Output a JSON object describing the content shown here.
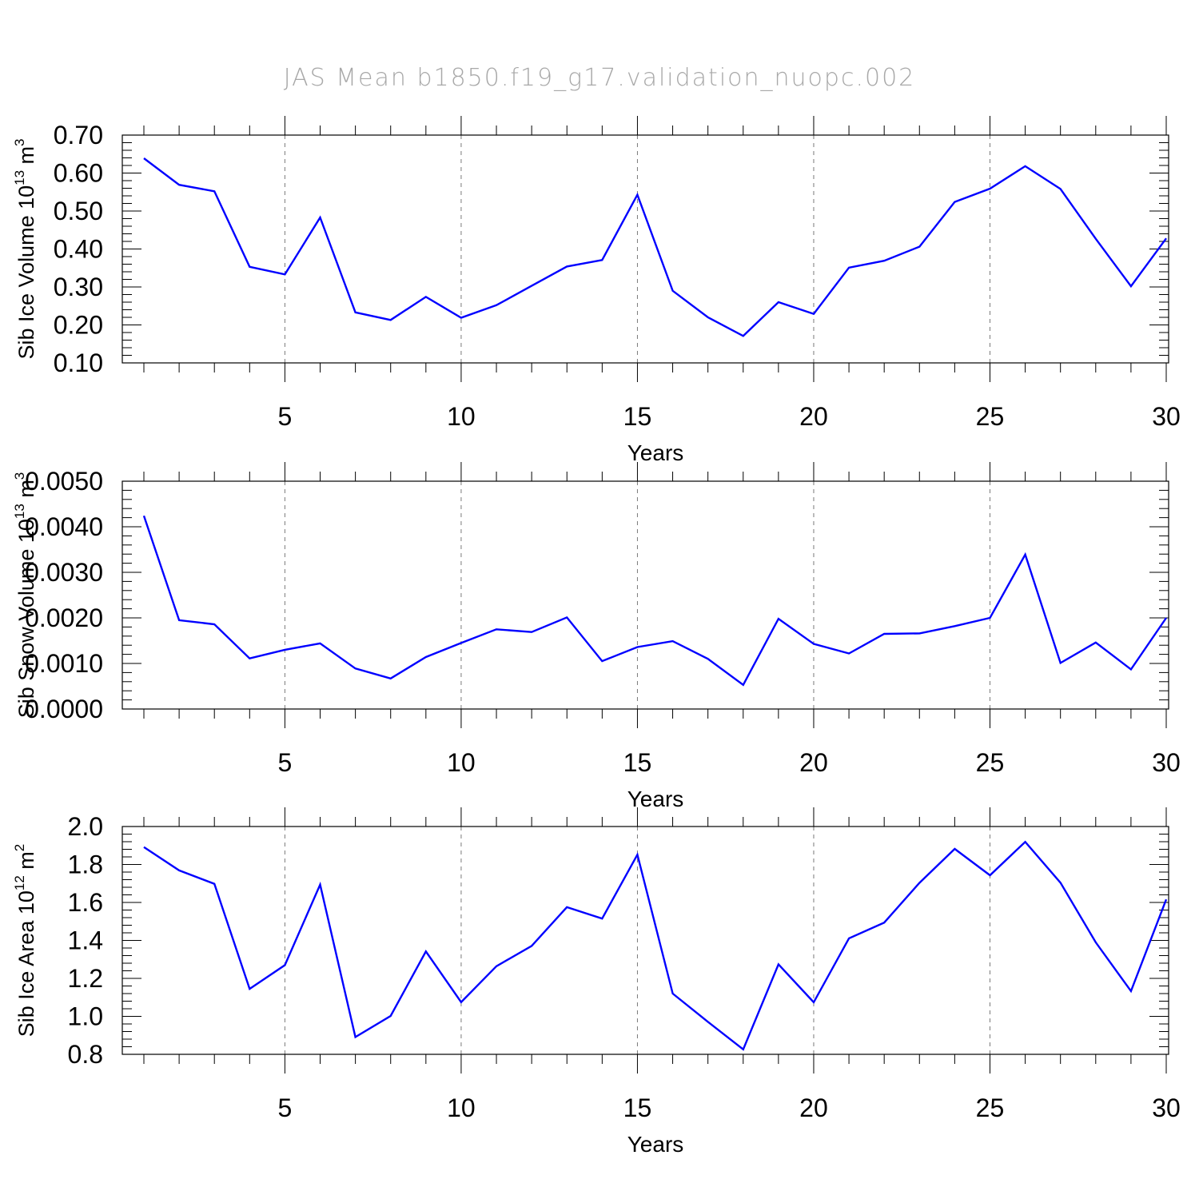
{
  "figure": {
    "title": "JAS Mean b1850.f19_g17.validation_nuopc.002",
    "line_color": "#0000ff"
  },
  "chart_data": [
    {
      "type": "line",
      "xlabel": "Years",
      "ylabel": {
        "text": "Sib Ice Volume 10",
        "exp": "13",
        "unit": " m",
        "unit_exp": "3"
      },
      "xlim": [
        1,
        30
      ],
      "ylim": [
        0.1,
        0.7
      ],
      "x_ticks": [
        5,
        10,
        15,
        20,
        25,
        30
      ],
      "y_ticks": [
        0.1,
        0.2,
        0.3,
        0.4,
        0.5,
        0.6,
        0.7
      ],
      "y_tick_labels": [
        "0.10",
        "0.20",
        "0.30",
        "0.40",
        "0.50",
        "0.60",
        "0.70"
      ],
      "y_minor_step": 0.02,
      "grid": "dashed vertical lines at x ticks",
      "series": [
        {
          "name": "Sib Ice Volume",
          "x": [
            1,
            2,
            3,
            4,
            5,
            6,
            7,
            8,
            9,
            10,
            11,
            12,
            13,
            14,
            15,
            16,
            17,
            18,
            19,
            20,
            21,
            22,
            23,
            24,
            25,
            26,
            27,
            28,
            29,
            30
          ],
          "values": [
            0.639,
            0.569,
            0.552,
            0.353,
            0.333,
            0.483,
            0.233,
            0.213,
            0.274,
            0.219,
            0.252,
            0.303,
            0.354,
            0.371,
            0.543,
            0.29,
            0.22,
            0.171,
            0.26,
            0.229,
            0.351,
            0.369,
            0.406,
            0.524,
            0.559,
            0.618,
            0.558,
            0.427,
            0.302,
            0.428
          ]
        }
      ]
    },
    {
      "type": "line",
      "xlabel": "Years",
      "ylabel": {
        "text": "Sib Snow Volume 10",
        "exp": "13",
        "unit": " m",
        "unit_exp": "3"
      },
      "xlim": [
        1,
        30
      ],
      "ylim": [
        0.0,
        0.005
      ],
      "x_ticks": [
        5,
        10,
        15,
        20,
        25,
        30
      ],
      "y_ticks": [
        0.0,
        0.001,
        0.002,
        0.003,
        0.004,
        0.005
      ],
      "y_tick_labels": [
        "0.0000",
        "0.0010",
        "0.0020",
        "0.0030",
        "0.0040",
        "0.0050"
      ],
      "y_minor_step": 0.0002,
      "grid": "dashed vertical lines at x ticks",
      "series": [
        {
          "name": "Sib Snow Volume",
          "x": [
            1,
            2,
            3,
            4,
            5,
            6,
            7,
            8,
            9,
            10,
            11,
            12,
            13,
            14,
            15,
            16,
            17,
            18,
            19,
            20,
            21,
            22,
            23,
            24,
            25,
            26,
            27,
            28,
            29,
            30
          ],
          "values": [
            0.00424,
            0.00195,
            0.00186,
            0.00111,
            0.0013,
            0.00144,
            0.00089,
            0.00067,
            0.00114,
            0.00145,
            0.00175,
            0.00169,
            0.00201,
            0.00105,
            0.00136,
            0.00149,
            0.0011,
            0.00053,
            0.00198,
            0.00143,
            0.00122,
            0.00165,
            0.00166,
            0.00182,
            0.002,
            0.00339,
            0.00101,
            0.00146,
            0.00087,
            0.002
          ]
        }
      ]
    },
    {
      "type": "line",
      "xlabel": "Years",
      "ylabel": {
        "text": "Sib Ice Area 10",
        "exp": "12",
        "unit": " m",
        "unit_exp": "2"
      },
      "xlim": [
        1,
        30
      ],
      "ylim": [
        0.8,
        2.0
      ],
      "x_ticks": [
        5,
        10,
        15,
        20,
        25,
        30
      ],
      "y_ticks": [
        0.8,
        1.0,
        1.2,
        1.4,
        1.6,
        1.8,
        2.0
      ],
      "y_tick_labels": [
        "0.8",
        "1.0",
        "1.2",
        "1.4",
        "1.6",
        "1.8",
        "2.0"
      ],
      "y_minor_step": 0.04,
      "grid": "dashed vertical lines at x ticks",
      "series": [
        {
          "name": "Sib Ice Area",
          "x": [
            1,
            2,
            3,
            4,
            5,
            6,
            7,
            8,
            9,
            10,
            11,
            12,
            13,
            14,
            15,
            16,
            17,
            18,
            19,
            20,
            21,
            22,
            23,
            24,
            25,
            26,
            27,
            28,
            29,
            30
          ],
          "values": [
            1.892,
            1.769,
            1.698,
            1.145,
            1.27,
            1.694,
            0.891,
            1.002,
            1.342,
            1.075,
            1.264,
            1.371,
            1.575,
            1.515,
            1.852,
            1.12,
            0.971,
            0.826,
            1.274,
            1.074,
            1.411,
            1.494,
            1.703,
            1.882,
            1.743,
            1.919,
            1.704,
            1.39,
            1.133,
            1.616
          ]
        }
      ]
    }
  ]
}
